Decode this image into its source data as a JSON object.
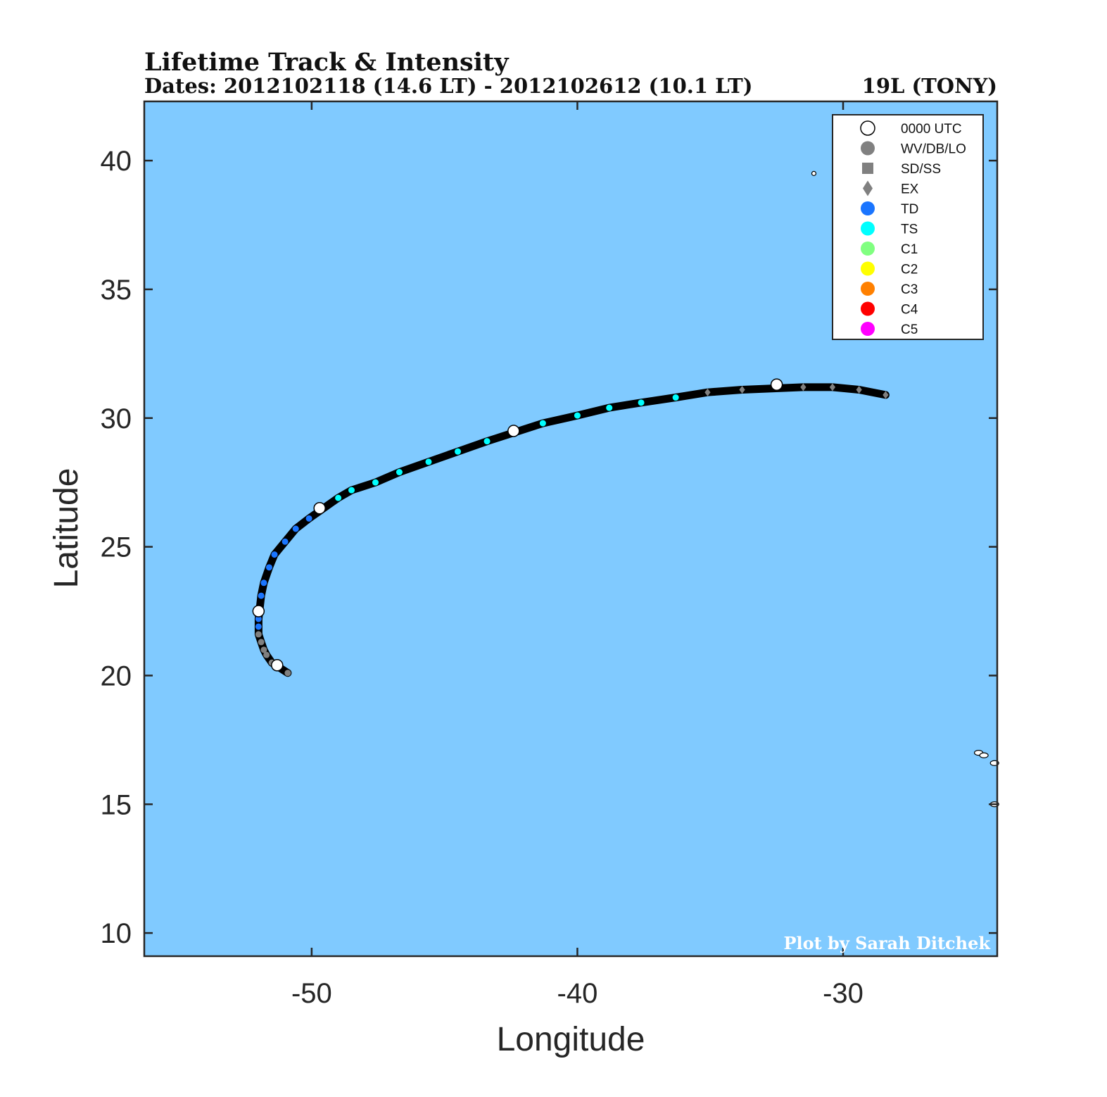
{
  "title": "Lifetime Track & Intensity",
  "subtitle_dates": "Dates: 2012102118 (14.6 LT) - 2012102612 (10.1 LT)",
  "storm_name": "19L (TONY)",
  "credit": "Plot by Sarah Ditchek",
  "colors": {
    "ocean": "#80caff",
    "track": "#000000",
    "frame": "#262626",
    "wv_db_lo": "#808080",
    "sd_ss": "#808080",
    "ex": "#808080",
    "td": "#1a75ff",
    "ts": "#00ffff",
    "c1": "#80ff80",
    "c2": "#ffff00",
    "c3": "#ff8000",
    "c4": "#ff0000",
    "c5": "#ff00ff",
    "utc0000": "#ffffff"
  },
  "legend": {
    "placement": "top-right",
    "items": [
      {
        "label": "0000 UTC",
        "marker": "circle-open",
        "color": "#ffffff"
      },
      {
        "label": "WV/DB/LO",
        "marker": "circle",
        "color": "#808080"
      },
      {
        "label": "SD/SS",
        "marker": "square",
        "color": "#808080"
      },
      {
        "label": "EX",
        "marker": "diamond",
        "color": "#808080"
      },
      {
        "label": "TD",
        "marker": "circle",
        "color": "#1a75ff"
      },
      {
        "label": "TS",
        "marker": "circle",
        "color": "#00ffff"
      },
      {
        "label": "C1",
        "marker": "circle",
        "color": "#80ff80"
      },
      {
        "label": "C2",
        "marker": "circle",
        "color": "#ffff00"
      },
      {
        "label": "C3",
        "marker": "circle",
        "color": "#ff8000"
      },
      {
        "label": "C4",
        "marker": "circle",
        "color": "#ff0000"
      },
      {
        "label": "C5",
        "marker": "circle",
        "color": "#ff00ff"
      }
    ]
  },
  "chart_data": {
    "type": "scatter",
    "xlabel": "Longitude",
    "ylabel": "Latitude",
    "xlim": [
      -56.3,
      -24.2
    ],
    "ylim": [
      9.1,
      42.3
    ],
    "xticks": [
      -50,
      -40,
      -30
    ],
    "yticks": [
      10,
      15,
      20,
      25,
      30,
      35,
      40
    ],
    "grid": false,
    "track": [
      {
        "lon": -50.9,
        "lat": 20.1,
        "cat": "LO"
      },
      {
        "lon": -51.5,
        "lat": 20.5,
        "cat": "LO"
      },
      {
        "lon": -51.7,
        "lat": 20.8,
        "cat": "LO"
      },
      {
        "lon": -51.8,
        "lat": 21.0,
        "cat": "LO"
      },
      {
        "lon": -51.9,
        "lat": 21.3,
        "cat": "LO"
      },
      {
        "lon": -52.0,
        "lat": 21.6,
        "cat": "LO"
      },
      {
        "lon": -52.0,
        "lat": 21.9,
        "cat": "TD"
      },
      {
        "lon": -52.0,
        "lat": 22.2,
        "cat": "TD"
      },
      {
        "lon": -51.9,
        "lat": 23.1,
        "cat": "TD"
      },
      {
        "lon": -51.8,
        "lat": 23.6,
        "cat": "TD"
      },
      {
        "lon": -51.6,
        "lat": 24.2,
        "cat": "TD"
      },
      {
        "lon": -51.4,
        "lat": 24.7,
        "cat": "TD"
      },
      {
        "lon": -51.0,
        "lat": 25.2,
        "cat": "TD"
      },
      {
        "lon": -50.6,
        "lat": 25.7,
        "cat": "TD"
      },
      {
        "lon": -50.1,
        "lat": 26.1,
        "cat": "TD"
      },
      {
        "lon": -49.0,
        "lat": 26.9,
        "cat": "TS"
      },
      {
        "lon": -48.5,
        "lat": 27.2,
        "cat": "TS"
      },
      {
        "lon": -47.6,
        "lat": 27.5,
        "cat": "TS"
      },
      {
        "lon": -46.7,
        "lat": 27.9,
        "cat": "TS"
      },
      {
        "lon": -45.6,
        "lat": 28.3,
        "cat": "TS"
      },
      {
        "lon": -44.5,
        "lat": 28.7,
        "cat": "TS"
      },
      {
        "lon": -43.4,
        "lat": 29.1,
        "cat": "TS"
      },
      {
        "lon": -41.3,
        "lat": 29.8,
        "cat": "TS"
      },
      {
        "lon": -40.0,
        "lat": 30.1,
        "cat": "TS"
      },
      {
        "lon": -38.8,
        "lat": 30.4,
        "cat": "TS"
      },
      {
        "lon": -37.6,
        "lat": 30.6,
        "cat": "TS"
      },
      {
        "lon": -36.3,
        "lat": 30.8,
        "cat": "TS"
      },
      {
        "lon": -35.1,
        "lat": 31.0,
        "cat": "EX"
      },
      {
        "lon": -33.8,
        "lat": 31.1,
        "cat": "EX"
      },
      {
        "lon": -31.5,
        "lat": 31.2,
        "cat": "EX"
      },
      {
        "lon": -30.4,
        "lat": 31.2,
        "cat": "EX"
      },
      {
        "lon": -29.4,
        "lat": 31.1,
        "cat": "EX"
      },
      {
        "lon": -28.4,
        "lat": 30.9,
        "cat": "EX"
      }
    ],
    "utc0000_points": [
      {
        "lon": -51.3,
        "lat": 20.4
      },
      {
        "lon": -52.0,
        "lat": 22.5
      },
      {
        "lon": -49.7,
        "lat": 26.5
      },
      {
        "lon": -42.4,
        "lat": 29.5
      },
      {
        "lon": -32.5,
        "lat": 31.3
      }
    ],
    "islands": [
      {
        "lon": -31.1,
        "lat": 39.5
      },
      {
        "lon": -24.9,
        "lat": 17.0
      },
      {
        "lon": -24.7,
        "lat": 16.9
      },
      {
        "lon": -24.3,
        "lat": 16.6
      },
      {
        "lon": -24.3,
        "lat": 15.0
      }
    ]
  }
}
